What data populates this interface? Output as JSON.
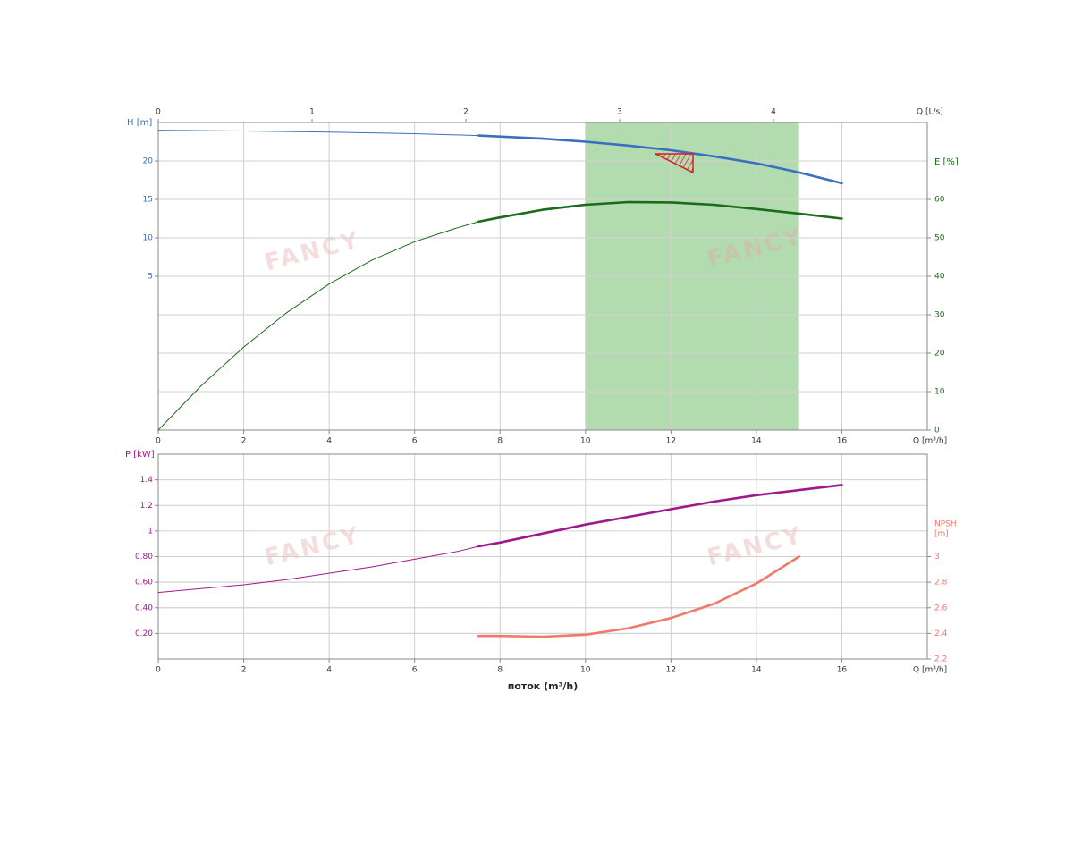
{
  "chart_data": [
    {
      "type": "line",
      "xlim": [
        0,
        18
      ],
      "xticks": [
        0,
        2,
        4,
        6,
        8,
        10,
        12,
        14,
        16
      ],
      "xlabel": "Q [m³/h]",
      "x2lim": [
        0,
        5
      ],
      "x2ticks": [
        0,
        1,
        2,
        3,
        4
      ],
      "x2label": "Q [L/s]",
      "ylim": [
        -15,
        25
      ],
      "yticks": [
        5,
        10,
        15,
        20
      ],
      "ylabel": "H [m]",
      "ylabel_color": "#3a6fbf",
      "y2lim": [
        0,
        80
      ],
      "y2ticks": [
        0,
        10,
        20,
        30,
        40,
        50,
        60
      ],
      "y2label": "E [%]",
      "y2label_color": "#1a6b1a",
      "grid": true,
      "band": {
        "from": 10,
        "to": 15,
        "color": "#b3dbb0"
      },
      "bold_from": 7.5,
      "watermark": "FANCY",
      "series": [
        {
          "color": "#3a6fbf",
          "x": [
            0,
            2,
            4,
            6,
            7.5,
            9,
            10,
            11,
            12,
            13,
            14,
            15,
            16
          ],
          "values": [
            24.0,
            23.9,
            23.75,
            23.55,
            23.3,
            22.9,
            22.5,
            22.0,
            21.4,
            20.6,
            19.7,
            18.5,
            17.1
          ]
        },
        {
          "color": "#1a6b1a",
          "axis": "y2",
          "x": [
            0,
            1,
            2,
            3,
            4,
            5,
            6,
            7,
            7.5,
            8,
            9,
            10,
            11,
            12,
            13,
            14,
            15,
            16
          ],
          "values": [
            0,
            11.5,
            21.6,
            30.5,
            38,
            44.2,
            49,
            52.6,
            54.2,
            55.3,
            57.3,
            58.6,
            59.3,
            59.2,
            58.6,
            57.5,
            56.3,
            55.0
          ]
        }
      ]
    },
    {
      "type": "line",
      "xlim": [
        0,
        18
      ],
      "xticks": [
        0,
        2,
        4,
        6,
        8,
        10,
        12,
        14,
        16
      ],
      "xlabel": "Q [m³/h]",
      "axis_title": "поток (m³/h)",
      "ylim": [
        0,
        1.6
      ],
      "yticks": [
        {
          "value": 0.2,
          "label": "0.20"
        },
        {
          "value": 0.4,
          "label": "0.40"
        },
        {
          "value": 0.6,
          "label": "0.60"
        },
        {
          "value": 0.8,
          "label": "0.80"
        },
        1,
        1.2,
        1.4
      ],
      "ylabel": "P [kW]",
      "ylabel_color": "#a0198c",
      "y2lim": [
        2.2,
        3.8
      ],
      "y2ticks": [
        2.2,
        2.4,
        2.6,
        2.8,
        3
      ],
      "y2label_lines": [
        "NPSH",
        "[m]"
      ],
      "y2label_color": "#f07a6a",
      "grid": true,
      "bold_from": 7.5,
      "watermark": "FANCY",
      "series": [
        {
          "color": "#a0198c",
          "x": [
            0,
            1,
            2,
            3,
            4,
            5,
            6,
            7,
            7.5,
            8,
            9,
            10,
            11,
            12,
            13,
            14,
            15,
            16
          ],
          "values": [
            0.52,
            0.55,
            0.58,
            0.62,
            0.67,
            0.72,
            0.78,
            0.84,
            0.88,
            0.91,
            0.98,
            1.05,
            1.11,
            1.17,
            1.23,
            1.28,
            1.32,
            1.36
          ]
        },
        {
          "color": "#f07a6a",
          "axis": "y2",
          "x": [
            7.5,
            8,
            9,
            10,
            11,
            12,
            13,
            14,
            15
          ],
          "values": [
            2.38,
            2.38,
            2.375,
            2.39,
            2.44,
            2.52,
            2.63,
            2.79,
            3.0
          ]
        }
      ]
    }
  ]
}
